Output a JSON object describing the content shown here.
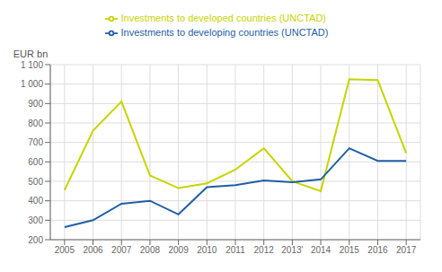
{
  "chart_data": {
    "type": "line",
    "ylabel": "EUR bn",
    "x": [
      2005,
      2006,
      2007,
      2008,
      2009,
      2010,
      2011,
      2012,
      2013,
      2014,
      2015,
      2016,
      2017
    ],
    "series": [
      {
        "name": "Investments to developed countries (UNCTAD)",
        "color": "#c8d400",
        "values": [
          455,
          760,
          910,
          530,
          465,
          490,
          560,
          670,
          500,
          450,
          1025,
          1020,
          645
        ]
      },
      {
        "name": "Investments to developing countries (UNCTAD)",
        "color": "#1f5fa6",
        "values": [
          265,
          300,
          385,
          400,
          330,
          470,
          480,
          505,
          495,
          510,
          670,
          605,
          605
        ]
      }
    ],
    "xlim": [
      2004.5,
      2017.5
    ],
    "xticks": [
      2005,
      2006,
      2007,
      2008,
      2009,
      2010,
      2011,
      2012,
      {
        "value": 2013,
        "label": "2013'"
      },
      2014,
      2015,
      2016,
      2017
    ],
    "ylim": [
      200,
      1100
    ],
    "yticks": [
      200,
      300,
      400,
      500,
      600,
      700,
      800,
      900,
      {
        "value": 1000,
        "label": "1 000"
      },
      {
        "value": 1100,
        "label": "1 100"
      }
    ],
    "grid": true,
    "legend": "top"
  }
}
